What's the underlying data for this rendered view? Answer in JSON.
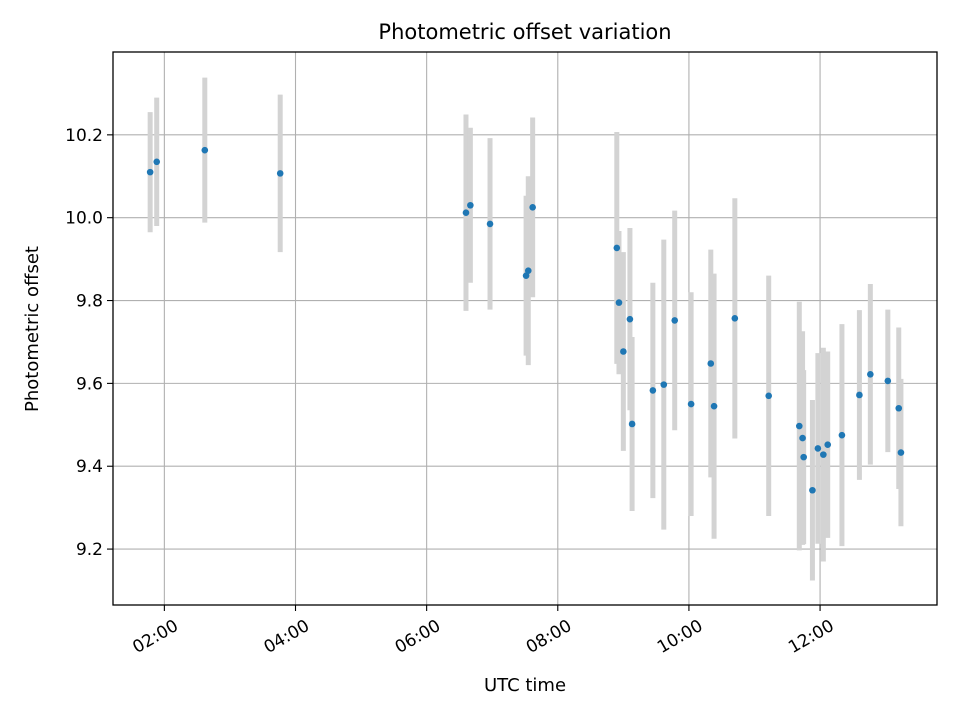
{
  "chart_data": {
    "type": "scatter",
    "title": "Photometric offset variation",
    "xlabel": "UTC time",
    "ylabel": "Photometric offset",
    "x_ticks": [
      "02:00",
      "04:00",
      "06:00",
      "08:00",
      "10:00",
      "12:00"
    ],
    "x_tick_hours": [
      2,
      4,
      6,
      8,
      10,
      12
    ],
    "y_ticks": [
      "9.2",
      "9.4",
      "9.6",
      "9.8",
      "10.0",
      "10.2"
    ],
    "y_tick_values": [
      9.2,
      9.4,
      9.6,
      9.8,
      10.0,
      10.2
    ],
    "xlim": [
      "01:13",
      "13:47"
    ],
    "ylim": [
      9.065,
      10.4
    ],
    "grid": true,
    "marker_color": "#1f77b4",
    "errorbar_color": "#d3d3d3",
    "points": [
      {
        "t": "01:47",
        "y": 10.11,
        "err": 0.145
      },
      {
        "t": "01:53",
        "y": 10.135,
        "err": 0.155
      },
      {
        "t": "02:37",
        "y": 10.163,
        "err": 0.175
      },
      {
        "t": "03:46",
        "y": 10.107,
        "err": 0.19
      },
      {
        "t": "06:36",
        "y": 10.012,
        "err": 0.237
      },
      {
        "t": "06:40",
        "y": 10.03,
        "err": 0.187
      },
      {
        "t": "06:58",
        "y": 9.985,
        "err": 0.207
      },
      {
        "t": "07:31",
        "y": 9.86,
        "err": 0.193
      },
      {
        "t": "07:33",
        "y": 9.872,
        "err": 0.228
      },
      {
        "t": "07:37",
        "y": 10.025,
        "err": 0.217
      },
      {
        "t": "08:54",
        "y": 9.927,
        "err": 0.28
      },
      {
        "t": "08:56",
        "y": 9.795,
        "err": 0.173
      },
      {
        "t": "09:00",
        "y": 9.677,
        "err": 0.24
      },
      {
        "t": "09:06",
        "y": 9.755,
        "err": 0.22
      },
      {
        "t": "09:08",
        "y": 9.502,
        "err": 0.21
      },
      {
        "t": "09:27",
        "y": 9.583,
        "err": 0.26
      },
      {
        "t": "09:37",
        "y": 9.597,
        "err": 0.35
      },
      {
        "t": "09:47",
        "y": 9.752,
        "err": 0.265
      },
      {
        "t": "10:02",
        "y": 9.55,
        "err": 0.27
      },
      {
        "t": "10:20",
        "y": 9.648,
        "err": 0.275
      },
      {
        "t": "10:23",
        "y": 9.545,
        "err": 0.32
      },
      {
        "t": "10:42",
        "y": 9.757,
        "err": 0.29
      },
      {
        "t": "11:13",
        "y": 9.57,
        "err": 0.29
      },
      {
        "t": "11:41",
        "y": 9.497,
        "err": 0.3
      },
      {
        "t": "11:44",
        "y": 9.468,
        "err": 0.258
      },
      {
        "t": "11:45",
        "y": 9.422,
        "err": 0.21
      },
      {
        "t": "11:53",
        "y": 9.342,
        "err": 0.218
      },
      {
        "t": "11:58",
        "y": 9.443,
        "err": 0.23
      },
      {
        "t": "12:03",
        "y": 9.428,
        "err": 0.258
      },
      {
        "t": "12:07",
        "y": 9.452,
        "err": 0.225
      },
      {
        "t": "12:20",
        "y": 9.475,
        "err": 0.268
      },
      {
        "t": "12:36",
        "y": 9.572,
        "err": 0.205
      },
      {
        "t": "12:46",
        "y": 9.622,
        "err": 0.218
      },
      {
        "t": "13:02",
        "y": 9.606,
        "err": 0.172
      },
      {
        "t": "13:12",
        "y": 9.54,
        "err": 0.195
      },
      {
        "t": "13:14",
        "y": 9.433,
        "err": 0.178
      }
    ]
  }
}
